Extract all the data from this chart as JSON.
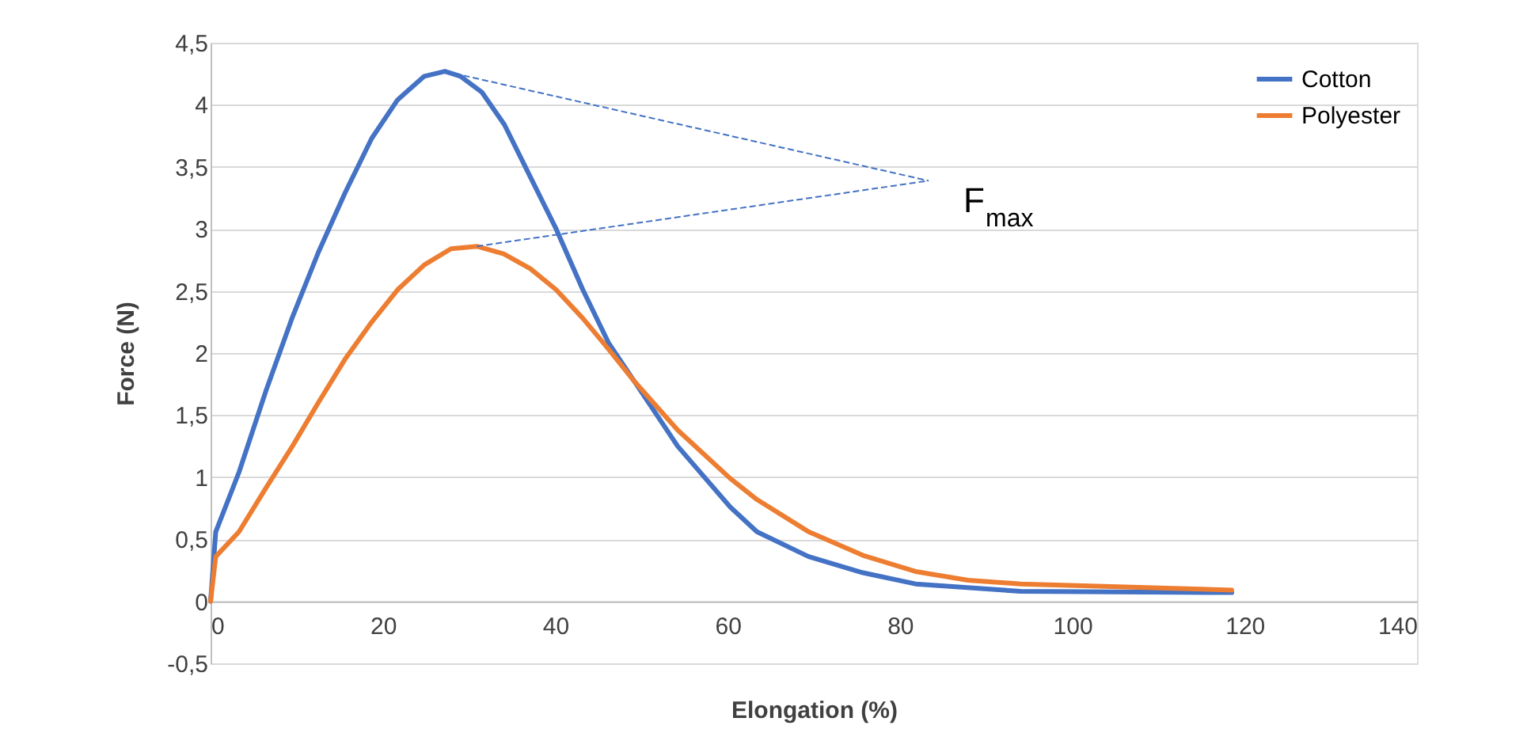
{
  "chart_data": {
    "type": "line",
    "xlabel": "Elongation (%)",
    "ylabel": "Force (N)",
    "xlim": [
      0,
      140
    ],
    "xticks": [
      0,
      20,
      40,
      60,
      80,
      100,
      120,
      140
    ],
    "ylim": [
      -0.5,
      4.5
    ],
    "yticks": [
      {
        "value": -0.5,
        "label": "-0,5"
      },
      0,
      {
        "value": 0.5,
        "label": "0,5"
      },
      1,
      {
        "value": 1.5,
        "label": "1,5"
      },
      2,
      {
        "value": 2.5,
        "label": "2,5"
      },
      3,
      {
        "value": 3.5,
        "label": "3,5"
      },
      4,
      {
        "value": 4.5,
        "label": "4,5"
      }
    ],
    "grid": "y",
    "legend": "top right",
    "marker": "none",
    "line_style": "solid",
    "annotations": [
      {
        "text": "F$_{max}$",
        "x": 30.9,
        "y": 2.86
      }
    ],
    "series": [
      {
        "name": "Cotton",
        "color": "#4472c4",
        "x": [
          0,
          0.6,
          3.3,
          6.4,
          9.5,
          12.5,
          15.6,
          18.7,
          21.7,
          24.8,
          27.2,
          29.0,
          31.5,
          34.1,
          37.1,
          40.1,
          43.2,
          46.2,
          49.2,
          54.2,
          60.3,
          63.4,
          69.4,
          75.7,
          81.8,
          94,
          118.5
        ],
        "values": [
          0,
          0.56,
          1.04,
          1.69,
          2.29,
          2.81,
          3.29,
          3.73,
          4.04,
          4.23,
          4.27,
          4.23,
          4.1,
          3.84,
          3.42,
          3.0,
          2.51,
          2.08,
          1.77,
          1.25,
          0.76,
          0.56,
          0.36,
          0.23,
          0.14,
          0.08,
          0.07
        ]
      },
      {
        "name": "Polyester",
        "color": "#ed7d31",
        "x": [
          0,
          0.6,
          3.3,
          6.4,
          9.5,
          12.5,
          15.6,
          18.7,
          21.7,
          24.8,
          27.9,
          30.9,
          34.0,
          37.1,
          40.1,
          43.2,
          46.2,
          49.2,
          54.2,
          60.3,
          63.4,
          69.4,
          75.7,
          81.8,
          87.9,
          94,
          118.5
        ],
        "values": [
          0,
          0.36,
          0.56,
          0.91,
          1.25,
          1.6,
          1.95,
          2.25,
          2.51,
          2.71,
          2.84,
          2.86,
          2.8,
          2.68,
          2.51,
          2.28,
          2.03,
          1.77,
          1.38,
          0.99,
          0.82,
          0.56,
          0.37,
          0.24,
          0.17,
          0.14,
          0.09
        ]
      }
    ]
  }
}
